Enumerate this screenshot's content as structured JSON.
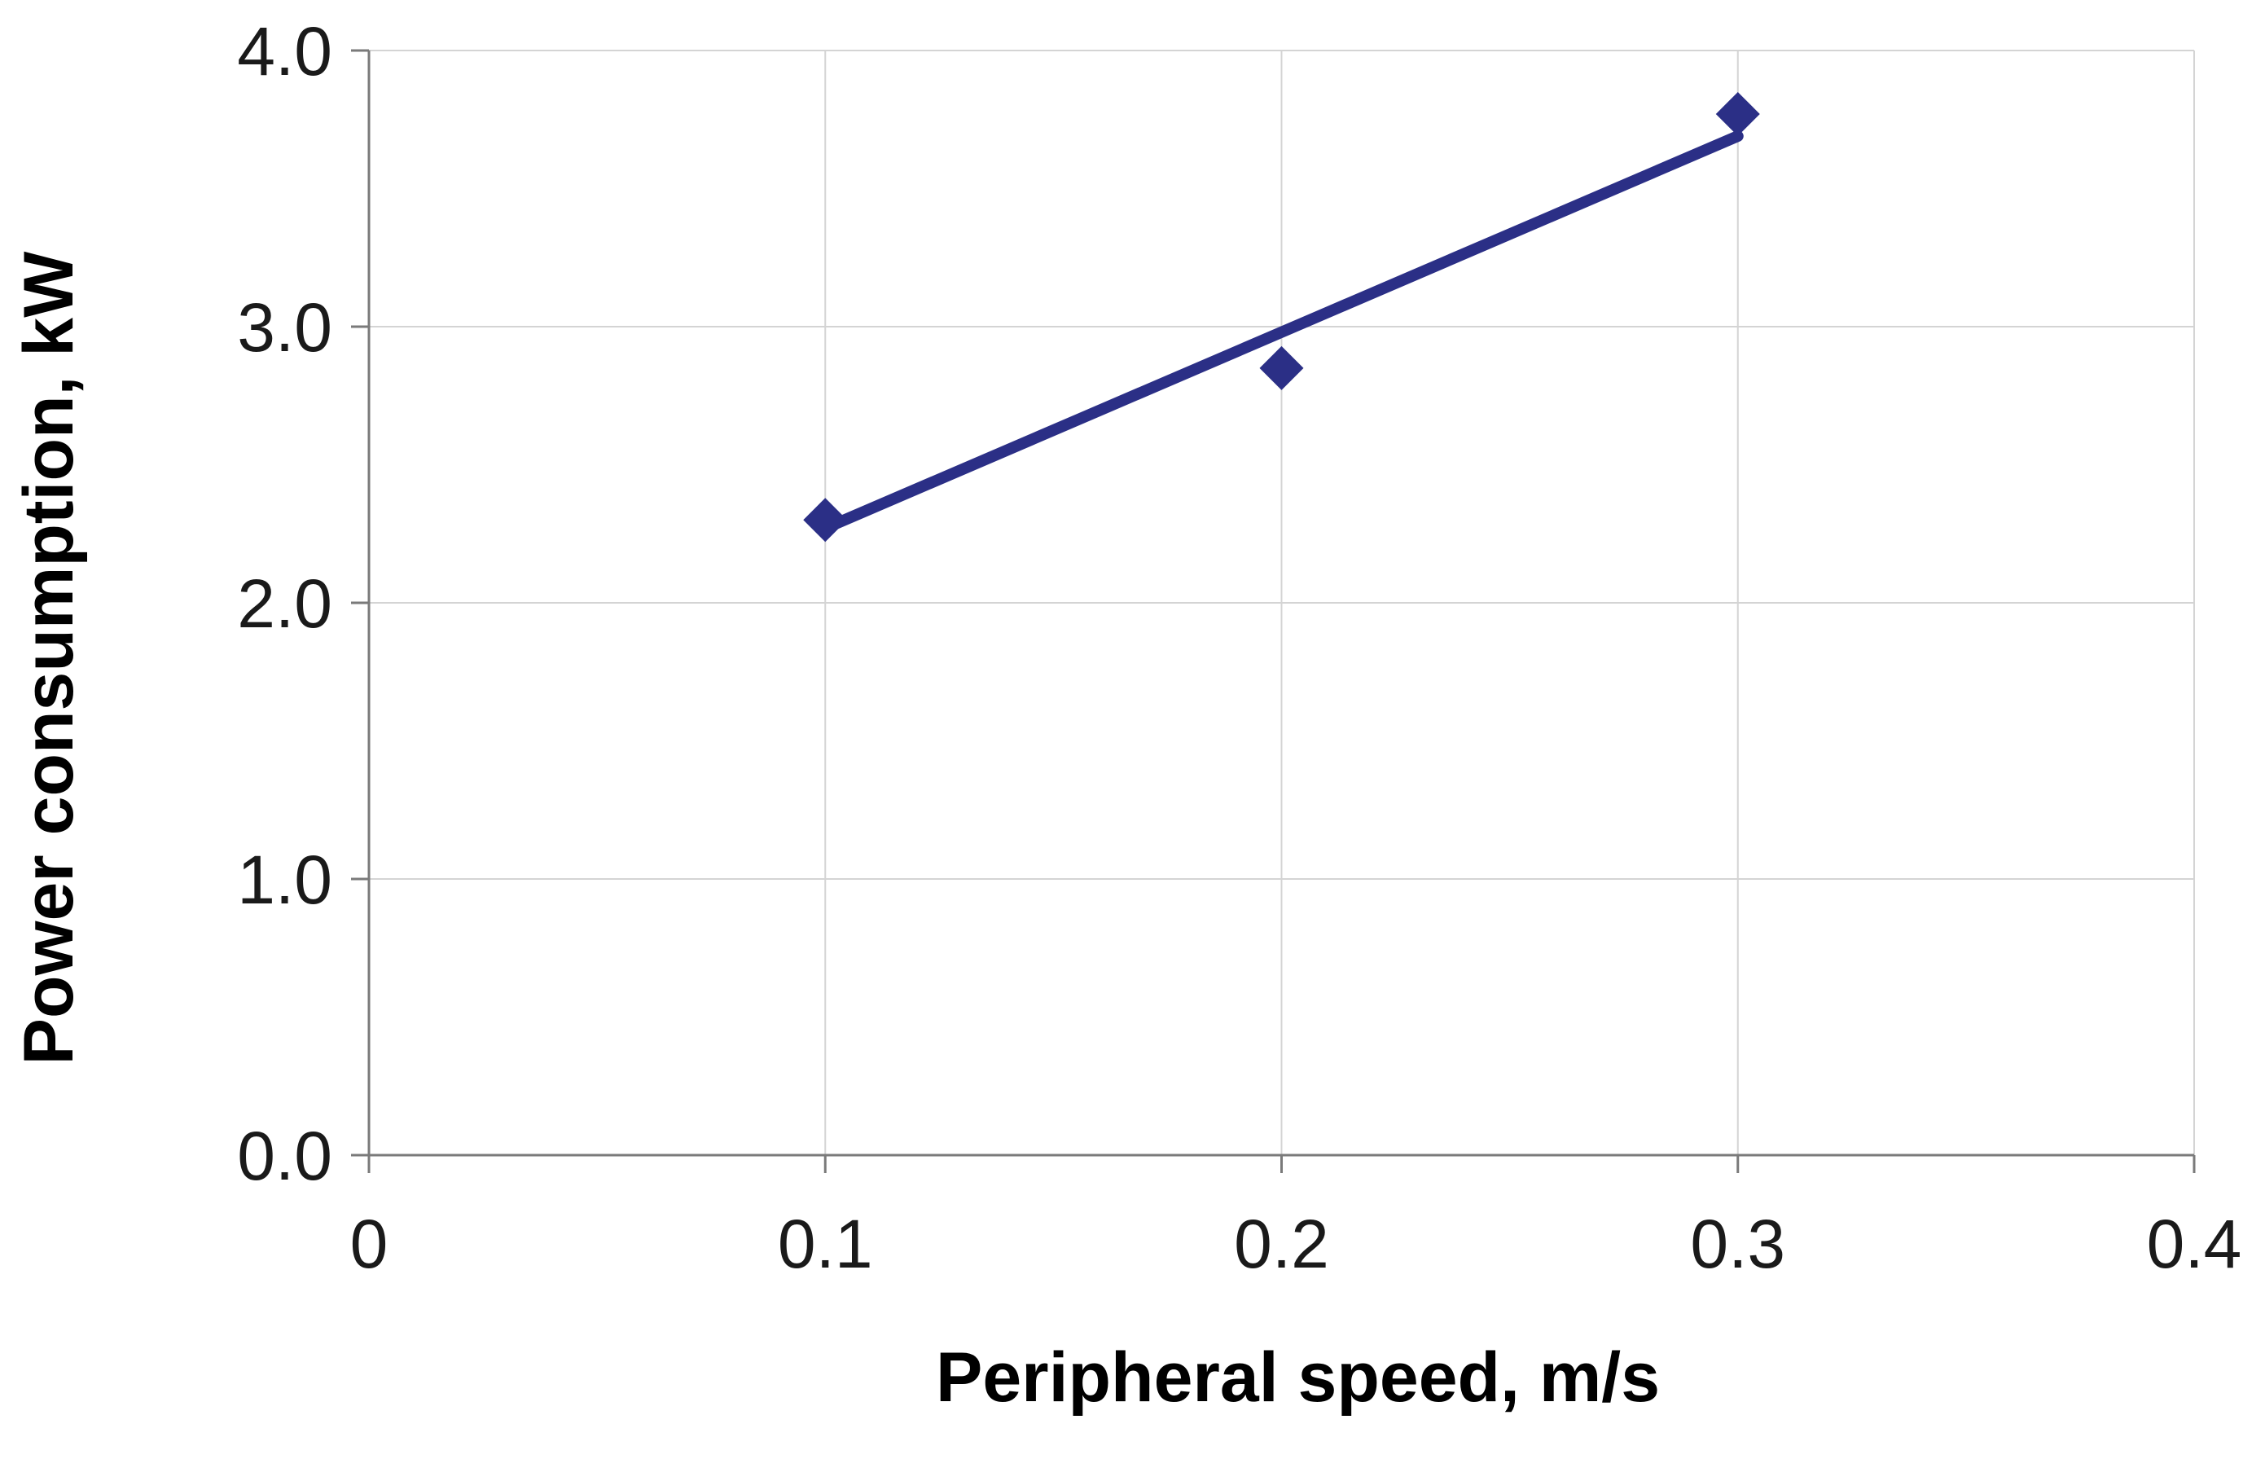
{
  "chart_data": {
    "type": "scatter",
    "xlabel": "Peripheral speed, m/s",
    "ylabel": "Power consumption, kW",
    "xlim": [
      0,
      0.4
    ],
    "ylim": [
      0.0,
      4.0
    ],
    "x_ticks": [
      "0",
      "0.1",
      "0.2",
      "0.3",
      "0.4"
    ],
    "x_tick_values": [
      0,
      0.1,
      0.2,
      0.3,
      0.4
    ],
    "y_ticks": [
      "0.0",
      "1.0",
      "2.0",
      "3.0",
      "4.0"
    ],
    "y_tick_values": [
      0.0,
      1.0,
      2.0,
      3.0,
      4.0
    ],
    "grid": true,
    "legend": "none",
    "series": [
      {
        "x": [
          0.1,
          0.2,
          0.3
        ],
        "y": [
          2.3,
          2.85,
          3.77
        ],
        "marker": "diamond",
        "color": "#2b2f86"
      }
    ],
    "trendline": {
      "type": "linear",
      "x": [
        0.1,
        0.3
      ],
      "y": [
        2.27,
        3.69
      ],
      "color": "#2b2f86"
    }
  }
}
